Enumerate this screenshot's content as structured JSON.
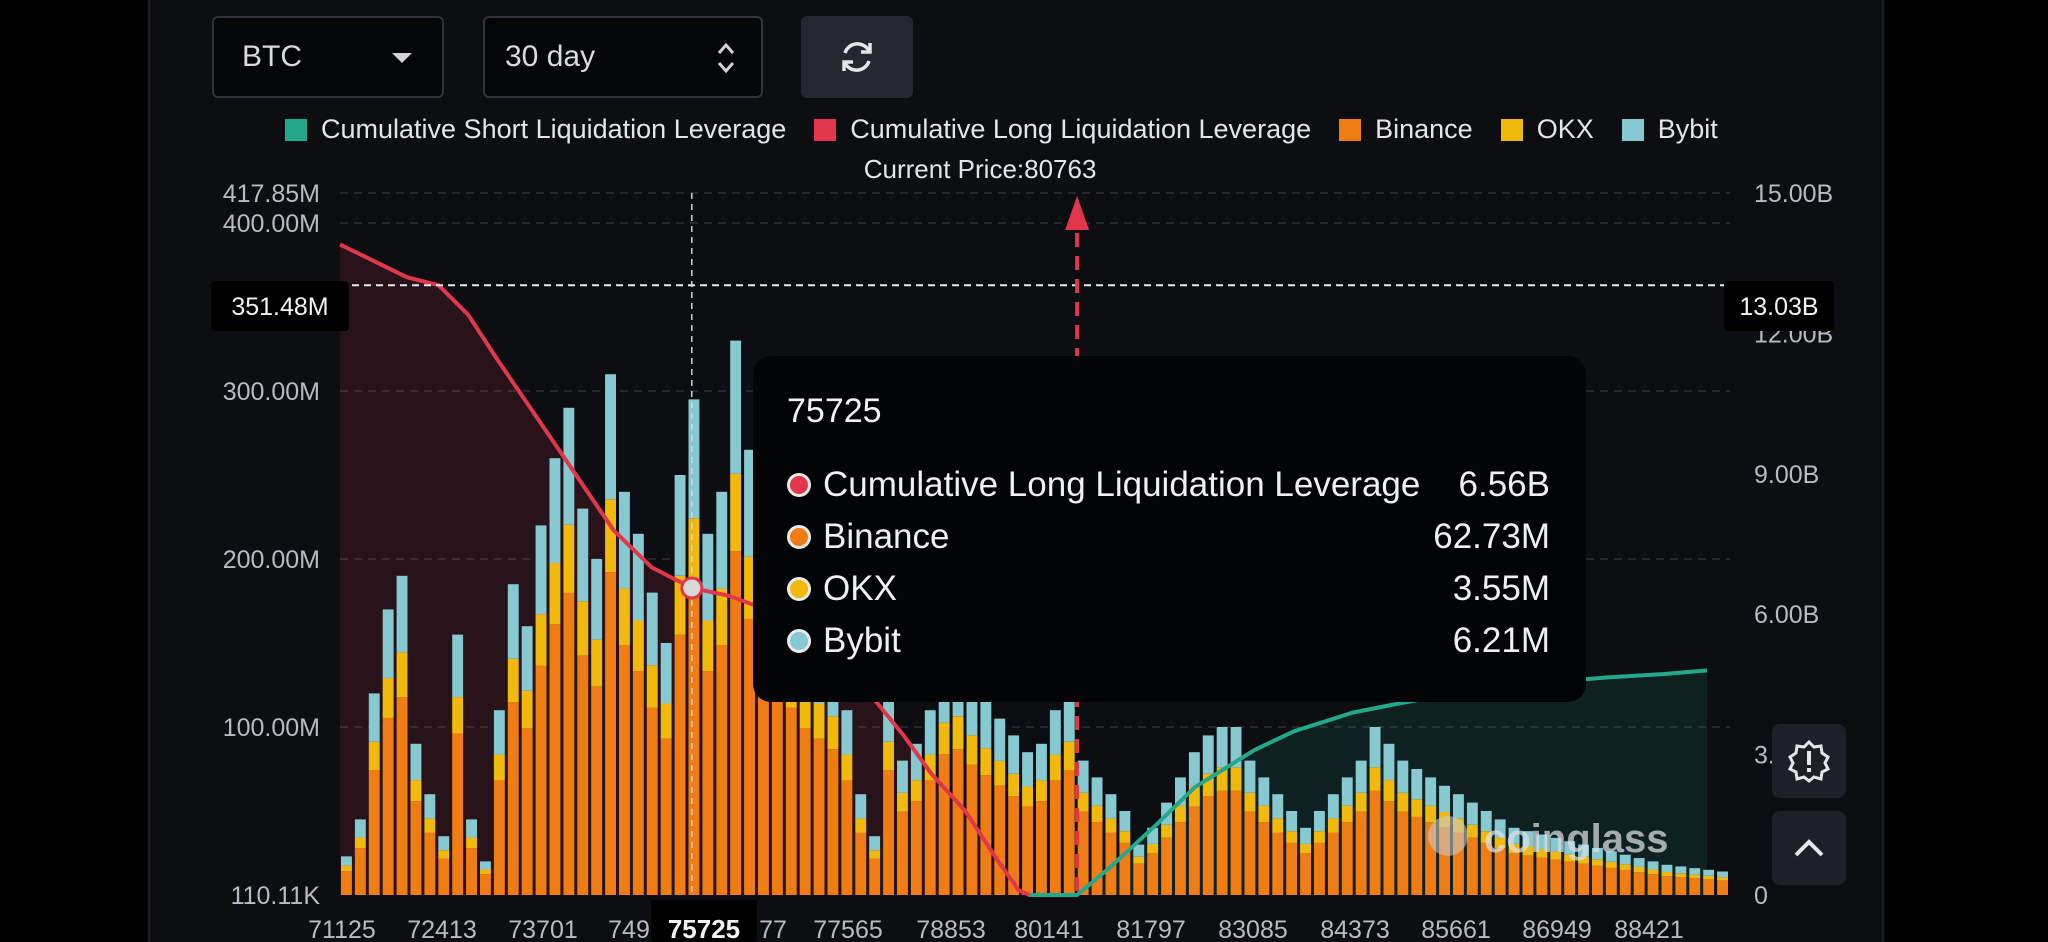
{
  "controls": {
    "coin": "BTC",
    "period": "30 day"
  },
  "colors": {
    "short": "#24a88c",
    "long": "#e2364a",
    "binance": "#f07c14",
    "okx": "#f1b90c",
    "bybit": "#86c9d1"
  },
  "chart_data": {
    "type": "bar",
    "legend": [
      "Cumulative Short Liquidation Leverage",
      "Cumulative Long Liquidation Leverage",
      "Binance",
      "OKX",
      "Bybit"
    ],
    "annotation": "Current Price:80763",
    "current_price": 80763,
    "x_ticks": [
      "71125",
      "72413",
      "73701",
      "749",
      "75725",
      "77",
      "77565",
      "78853",
      "80141",
      "81797",
      "83085",
      "84373",
      "85661",
      "86949",
      "88421"
    ],
    "left_axis_ticks": [
      "417.85M",
      "400.00M",
      "300.00M",
      "200.00M",
      "100.00M",
      "110.11K"
    ],
    "right_axis_ticks": [
      "15.00B",
      "12.00B",
      "9.00B",
      "6.00B",
      "3.",
      "0"
    ],
    "crosshair": {
      "x": "75725",
      "left_value": "351.48M",
      "right_value": "13.03B"
    },
    "ylim_left": [
      0,
      417.85
    ],
    "ylim_right": [
      0,
      15
    ],
    "cumulative_long_B": [
      [
        71125,
        13.9
      ],
      [
        71500,
        13.6
      ],
      [
        72000,
        13.2
      ],
      [
        72413,
        13.03
      ],
      [
        72800,
        12.4
      ],
      [
        73200,
        11.4
      ],
      [
        73701,
        10.2
      ],
      [
        74200,
        9.0
      ],
      [
        74700,
        7.8
      ],
      [
        75200,
        7.0
      ],
      [
        75725,
        6.56
      ],
      [
        76200,
        6.4
      ],
      [
        76700,
        6.1
      ],
      [
        77200,
        5.6
      ],
      [
        77565,
        5.2
      ],
      [
        78000,
        4.4
      ],
      [
        78500,
        3.4
      ],
      [
        78853,
        2.6
      ],
      [
        79300,
        1.8
      ],
      [
        79700,
        0.8
      ],
      [
        80000,
        0.1
      ],
      [
        80141,
        0.0
      ],
      [
        80763,
        0.0
      ]
    ],
    "cumulative_short_B": [
      [
        80141,
        0.0
      ],
      [
        80763,
        0.0
      ],
      [
        81200,
        0.6
      ],
      [
        81797,
        1.5
      ],
      [
        82300,
        2.3
      ],
      [
        83085,
        3.1
      ],
      [
        83600,
        3.5
      ],
      [
        84373,
        3.9
      ],
      [
        85000,
        4.1
      ],
      [
        85661,
        4.3
      ],
      [
        86300,
        4.45
      ],
      [
        86949,
        4.55
      ],
      [
        87700,
        4.65
      ],
      [
        88421,
        4.72
      ],
      [
        89000,
        4.8
      ]
    ],
    "bars_total_M": [
      23,
      45,
      120,
      170,
      190,
      90,
      60,
      35,
      155,
      45,
      20,
      110,
      185,
      160,
      220,
      260,
      290,
      230,
      200,
      310,
      240,
      215,
      180,
      150,
      250,
      295,
      215,
      240,
      330,
      265,
      190,
      200,
      180,
      160,
      150,
      140,
      110,
      60,
      35,
      120,
      80,
      90,
      110,
      135,
      140,
      125,
      115,
      105,
      95,
      85,
      90,
      110,
      120,
      80,
      70,
      60,
      50,
      30,
      40,
      55,
      70,
      85,
      95,
      100,
      100,
      80,
      70,
      60,
      50,
      40,
      50,
      60,
      70,
      80,
      100,
      90,
      80,
      75,
      70,
      65,
      60,
      55,
      50,
      45,
      40,
      38,
      36,
      34,
      32,
      30,
      28,
      26,
      24,
      22,
      20,
      18,
      17,
      16,
      15,
      14
    ],
    "tooltip": {
      "title": "75725",
      "rows": [
        {
          "label": "Cumulative Long Liquidation Leverage",
          "value": "6.56B",
          "color": "#e2364a"
        },
        {
          "label": "Binance",
          "value": "62.73M",
          "color": "#f07c14"
        },
        {
          "label": "OKX",
          "value": "3.55M",
          "color": "#f1b90c"
        },
        {
          "label": "Bybit",
          "value": "6.21M",
          "color": "#86c9d1"
        }
      ]
    },
    "watermark": "coinglass"
  }
}
